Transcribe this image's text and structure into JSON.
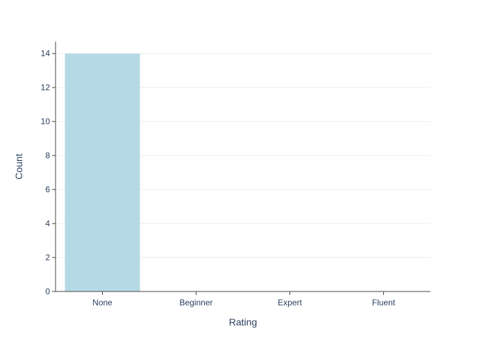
{
  "chart_data": {
    "type": "bar",
    "categories": [
      "None",
      "Beginner",
      "Expert",
      "Fluent"
    ],
    "values": [
      14,
      0,
      0,
      0
    ],
    "title": "",
    "xlabel": "Rating",
    "ylabel": "Count",
    "ylim": [
      0,
      14.7
    ],
    "yticks": [
      0,
      2,
      4,
      6,
      8,
      10,
      12,
      14
    ],
    "grid": true,
    "colors": {
      "bar": "#b5d9e5",
      "grid": "#eeeeee",
      "axis": "#444444",
      "text": "#2a3f5f"
    }
  }
}
